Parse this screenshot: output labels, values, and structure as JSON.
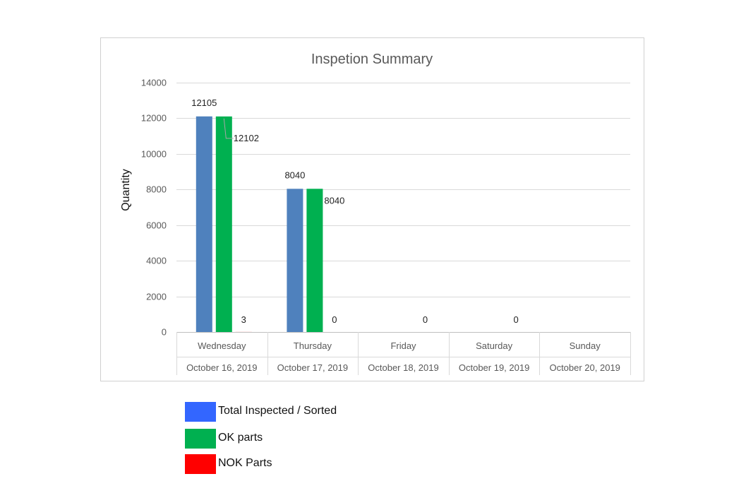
{
  "chart_data": {
    "type": "bar",
    "title": "Inspetion Summary",
    "xlabel": "",
    "ylabel": "Quantity",
    "ylim": [
      0,
      14000
    ],
    "yticks": [
      0,
      2000,
      4000,
      6000,
      8000,
      10000,
      12000,
      14000
    ],
    "categories": [
      "Wednesday",
      "Thursday",
      "Friday",
      "Saturday",
      "Sunday"
    ],
    "category_dates": [
      "October 16, 2019",
      "October 17, 2019",
      "October 18, 2019",
      "October 19, 2019",
      "October 20, 2019"
    ],
    "grid": true,
    "legend_position": "bottom-left, outside chart",
    "series": [
      {
        "name": "Total Inspected / Sorted",
        "color": "#4F81BD",
        "legend_color": "#3366FF",
        "values": [
          12105,
          8040,
          null,
          null,
          null
        ],
        "labels": [
          "12105",
          "8040",
          "",
          "",
          ""
        ]
      },
      {
        "name": "OK parts",
        "color": "#00B050",
        "legend_color": "#00B050",
        "values": [
          12102,
          8040,
          null,
          null,
          null
        ],
        "labels": [
          "12102",
          "8040",
          "",
          "",
          ""
        ]
      },
      {
        "name": "NOK Parts",
        "color": "#FF0000",
        "legend_color": "#FF0000",
        "values": [
          3,
          0,
          0,
          0,
          null
        ],
        "labels": [
          "3",
          "0",
          "0",
          "0",
          ""
        ]
      }
    ]
  }
}
